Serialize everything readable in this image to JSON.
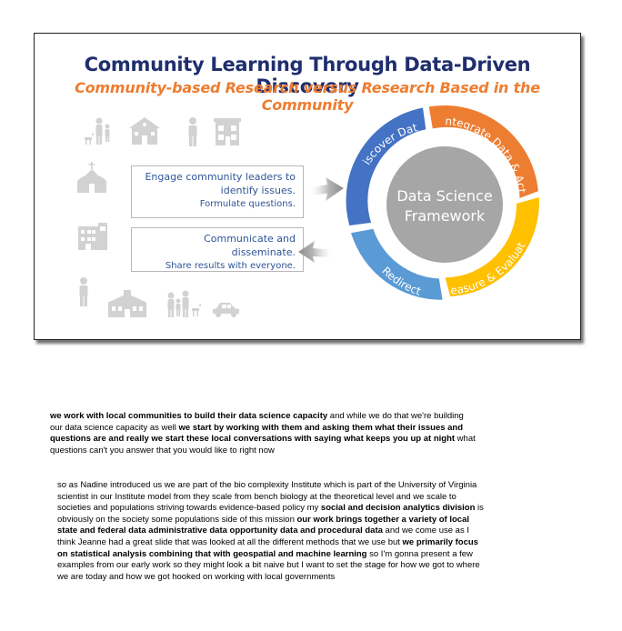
{
  "slide": {
    "title": "Community Learning Through Data-Driven Discovery",
    "subtitle": "Community-based Research versus Research Based in the Community",
    "callout_top": {
      "line1": "Engage community leaders to",
      "line2": "identify issues.",
      "line3": "Formulate questions."
    },
    "callout_bottom": {
      "line1": "Communicate and disseminate.",
      "line2": "Share results with everyone."
    },
    "cycle": {
      "center_line1": "Data Science",
      "center_line2": "Framework",
      "segments": [
        {
          "label": "Discover Data",
          "color": "#4472c4"
        },
        {
          "label": "Integrate Data & Act",
          "color": "#ed7d31"
        },
        {
          "label": "Measure & Evaluate",
          "color": "#ffc000"
        },
        {
          "label": "Redirect",
          "color": "#5b9bd5"
        }
      ],
      "center_color": "#a6a6a6"
    },
    "icons": [
      "family-icon",
      "school-icon",
      "person-icon",
      "store-icon",
      "church-icon",
      "building-icon",
      "person-icon",
      "townhall-icon",
      "family-icon",
      "car-icon"
    ]
  },
  "transcript": {
    "p1": [
      {
        "text": "we work with local communities to build their data science capacity",
        "bold": true
      },
      {
        "text": " and while we do that we're building our data science capacity as well ",
        "bold": false
      },
      {
        "text": "we start by working with them and asking them what their issues and questions are and really we start these local conversations with saying what keeps you up at night",
        "bold": true
      },
      {
        "text": " what questions can't you answer that you would like to right now",
        "bold": false
      }
    ],
    "p2": [
      {
        "text": "so as Nadine introduced us we are part of the bio complexity Institute which is part of the University of Virginia scientist in our Institute model from they scale from bench biology at the theoretical level and we scale to societies and populations striving towards evidence-based policy my ",
        "bold": false
      },
      {
        "text": "social and decision analytics division",
        "bold": true
      },
      {
        "text": " is obviously on the society some populations side of this mission ",
        "bold": false
      },
      {
        "text": "our work brings together a variety of local state and federal data administrative data opportunity data and procedural data",
        "bold": true
      },
      {
        "text": " and we come use as I think Jeanne had a great slide that was looked at all the different methods that we use but ",
        "bold": false
      },
      {
        "text": "we primarily focus on statistical analysis combining that with geospatial and machine learning",
        "bold": true
      },
      {
        "text": " so I'm gonna present a few examples from our early work so they might look a bit naive but I want to set the stage for how we got to where we are today and how we got hooked on working with local governments",
        "bold": false
      }
    ]
  }
}
